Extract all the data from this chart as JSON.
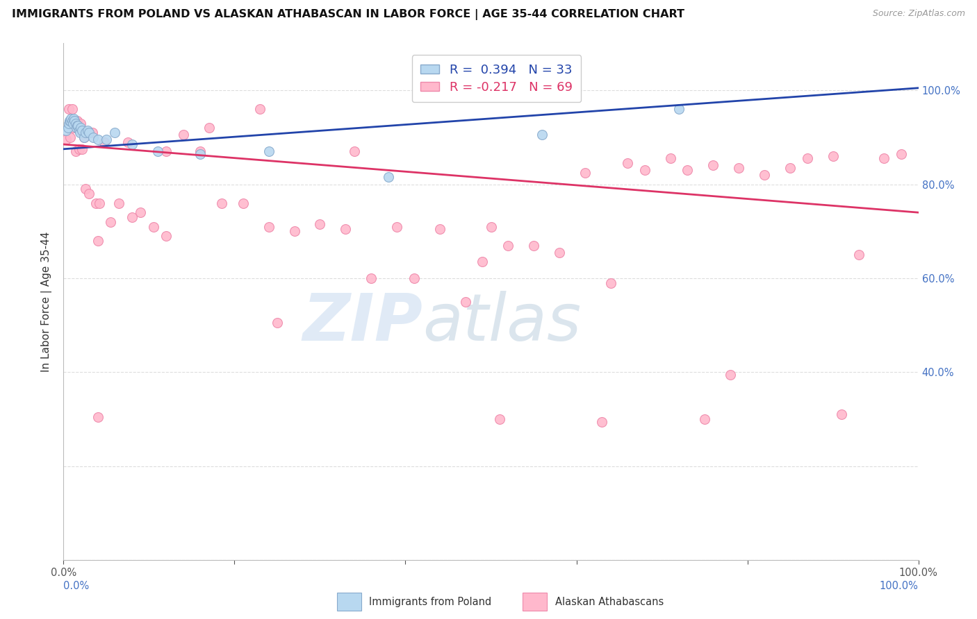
{
  "title": "IMMIGRANTS FROM POLAND VS ALASKAN ATHABASCAN IN LABOR FORCE | AGE 35-44 CORRELATION CHART",
  "source": "Source: ZipAtlas.com",
  "ylabel": "In Labor Force | Age 35-44",
  "xlim": [
    0.0,
    1.0
  ],
  "ylim": [
    0.0,
    1.1
  ],
  "x_ticks": [
    0.0,
    0.2,
    0.4,
    0.6,
    0.8,
    1.0
  ],
  "y_ticks": [
    0.0,
    0.2,
    0.4,
    0.6,
    0.8,
    1.0
  ],
  "x_tick_labels": [
    "0.0%",
    "",
    "",
    "",
    "",
    "100.0%"
  ],
  "y_right_labels": [
    "",
    "",
    "40.0%",
    "60.0%",
    "80.0%",
    "100.0%"
  ],
  "grid_color": "#dddddd",
  "background_color": "#ffffff",
  "poland_color": "#b8d8f0",
  "athabascan_color": "#ffb8cc",
  "poland_edge_color": "#88aacc",
  "athabascan_edge_color": "#ee88aa",
  "poland_R": 0.394,
  "poland_N": 33,
  "athabascan_R": -0.217,
  "athabascan_N": 69,
  "poland_line_color": "#2244aa",
  "athabascan_line_color": "#dd3366",
  "legend_label_poland": "Immigrants from Poland",
  "legend_label_athabascan": "Alaskan Athabascans",
  "watermark_zip": "ZIP",
  "watermark_atlas": "atlas",
  "poland_x": [
    0.003,
    0.005,
    0.006,
    0.007,
    0.008,
    0.009,
    0.01,
    0.011,
    0.012,
    0.013,
    0.014,
    0.015,
    0.016,
    0.017,
    0.018,
    0.019,
    0.02,
    0.022,
    0.024,
    0.026,
    0.028,
    0.03,
    0.035,
    0.04,
    0.05,
    0.06,
    0.08,
    0.11,
    0.16,
    0.24,
    0.38,
    0.56,
    0.72
  ],
  "poland_y": [
    0.915,
    0.92,
    0.93,
    0.935,
    0.935,
    0.94,
    0.935,
    0.93,
    0.94,
    0.935,
    0.93,
    0.92,
    0.925,
    0.925,
    0.915,
    0.91,
    0.92,
    0.915,
    0.9,
    0.91,
    0.915,
    0.91,
    0.9,
    0.895,
    0.895,
    0.91,
    0.885,
    0.87,
    0.865,
    0.87,
    0.815,
    0.905,
    0.96
  ],
  "athabascan_x": [
    0.003,
    0.006,
    0.008,
    0.01,
    0.012,
    0.014,
    0.016,
    0.018,
    0.02,
    0.022,
    0.024,
    0.026,
    0.03,
    0.034,
    0.038,
    0.042,
    0.048,
    0.055,
    0.065,
    0.075,
    0.09,
    0.105,
    0.12,
    0.14,
    0.16,
    0.185,
    0.21,
    0.24,
    0.27,
    0.3,
    0.33,
    0.36,
    0.39,
    0.41,
    0.44,
    0.47,
    0.5,
    0.52,
    0.55,
    0.58,
    0.61,
    0.64,
    0.66,
    0.68,
    0.71,
    0.73,
    0.76,
    0.79,
    0.82,
    0.85,
    0.87,
    0.9,
    0.93,
    0.96,
    0.98,
    0.04,
    0.08,
    0.12,
    0.17,
    0.23,
    0.34,
    0.49,
    0.63,
    0.78,
    0.91,
    0.04,
    0.25,
    0.51,
    0.75
  ],
  "athabascan_y": [
    0.895,
    0.96,
    0.9,
    0.96,
    0.92,
    0.87,
    0.935,
    0.875,
    0.93,
    0.875,
    0.9,
    0.79,
    0.78,
    0.91,
    0.76,
    0.76,
    0.89,
    0.72,
    0.76,
    0.89,
    0.74,
    0.71,
    0.69,
    0.905,
    0.87,
    0.76,
    0.76,
    0.71,
    0.7,
    0.715,
    0.705,
    0.6,
    0.71,
    0.6,
    0.705,
    0.55,
    0.71,
    0.67,
    0.67,
    0.655,
    0.825,
    0.59,
    0.845,
    0.83,
    0.855,
    0.83,
    0.84,
    0.835,
    0.82,
    0.835,
    0.855,
    0.86,
    0.65,
    0.855,
    0.865,
    0.68,
    0.73,
    0.87,
    0.92,
    0.96,
    0.87,
    0.635,
    0.295,
    0.395,
    0.31,
    0.305,
    0.505,
    0.3,
    0.3
  ],
  "poland_trendline": [
    0.0,
    1.0,
    0.875,
    1.005
  ],
  "athabascan_trendline": [
    0.0,
    1.0,
    0.885,
    0.74
  ]
}
